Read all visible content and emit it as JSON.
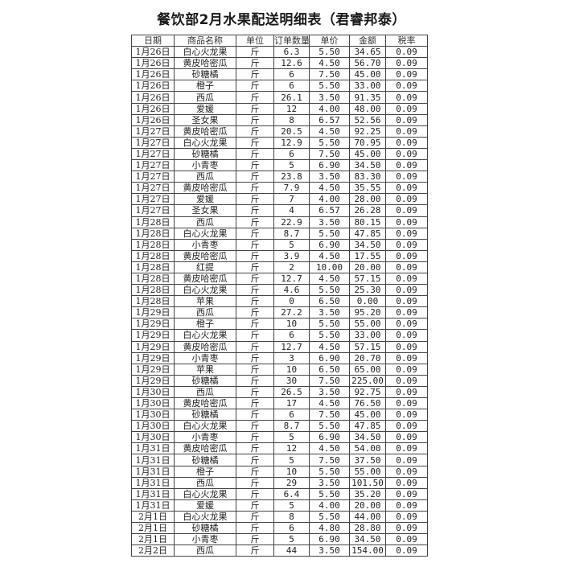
{
  "title": "餐饮部2月水果配送明细表（君睿邦泰）",
  "columns": [
    "日期",
    "商品名称",
    "单位",
    "订单数量",
    "单价",
    "金额",
    "税率"
  ],
  "rows": [
    [
      "1月26日",
      "白心火龙果",
      "斤",
      "6.3",
      "5.50",
      "34.65",
      "0.09"
    ],
    [
      "1月26日",
      "黄皮哈密瓜",
      "斤",
      "12.6",
      "4.50",
      "56.70",
      "0.09"
    ],
    [
      "1月26日",
      "砂糖橘",
      "斤",
      "6",
      "7.50",
      "45.00",
      "0.09"
    ],
    [
      "1月26日",
      "橙子",
      "斤",
      "6",
      "5.50",
      "33.00",
      "0.09"
    ],
    [
      "1月26日",
      "西瓜",
      "斤",
      "26.1",
      "3.50",
      "91.35",
      "0.09"
    ],
    [
      "1月26日",
      "爱媛",
      "斤",
      "12",
      "4.00",
      "48.00",
      "0.09"
    ],
    [
      "1月26日",
      "圣女果",
      "斤",
      "8",
      "6.57",
      "52.56",
      "0.09"
    ],
    [
      "1月27日",
      "黄皮哈密瓜",
      "斤",
      "20.5",
      "4.50",
      "92.25",
      "0.09"
    ],
    [
      "1月27日",
      "白心火龙果",
      "斤",
      "12.9",
      "5.50",
      "70.95",
      "0.09"
    ],
    [
      "1月27日",
      "砂糖橘",
      "斤",
      "6",
      "7.50",
      "45.00",
      "0.09"
    ],
    [
      "1月27日",
      "小青枣",
      "斤",
      "5",
      "6.90",
      "34.50",
      "0.09"
    ],
    [
      "1月27日",
      "西瓜",
      "斤",
      "23.8",
      "3.50",
      "83.30",
      "0.09"
    ],
    [
      "1月27日",
      "黄皮哈密瓜",
      "斤",
      "7.9",
      "4.50",
      "35.55",
      "0.09"
    ],
    [
      "1月27日",
      "爱媛",
      "斤",
      "7",
      "4.00",
      "28.00",
      "0.09"
    ],
    [
      "1月27日",
      "圣女果",
      "斤",
      "4",
      "6.57",
      "26.28",
      "0.09"
    ],
    [
      "1月28日",
      "西瓜",
      "斤",
      "22.9",
      "3.50",
      "80.15",
      "0.09"
    ],
    [
      "1月28日",
      "白心火龙果",
      "斤",
      "8.7",
      "5.50",
      "47.85",
      "0.09"
    ],
    [
      "1月28日",
      "小青枣",
      "斤",
      "5",
      "6.90",
      "34.50",
      "0.09"
    ],
    [
      "1月28日",
      "黄皮哈密瓜",
      "斤",
      "3.9",
      "4.50",
      "17.55",
      "0.09"
    ],
    [
      "1月28日",
      "红提",
      "斤",
      "2",
      "10.00",
      "20.00",
      "0.09"
    ],
    [
      "1月28日",
      "黄皮哈密瓜",
      "斤",
      "12.7",
      "4.50",
      "57.15",
      "0.09"
    ],
    [
      "1月28日",
      "白心火龙果",
      "斤",
      "4.6",
      "5.50",
      "25.30",
      "0.09"
    ],
    [
      "1月28日",
      "苹果",
      "斤",
      "0",
      "6.50",
      "0.00",
      "0.09"
    ],
    [
      "1月29日",
      "西瓜",
      "斤",
      "27.2",
      "3.50",
      "95.20",
      "0.09"
    ],
    [
      "1月29日",
      "橙子",
      "斤",
      "10",
      "5.50",
      "55.00",
      "0.09"
    ],
    [
      "1月29日",
      "白心火龙果",
      "斤",
      "6",
      "5.50",
      "33.00",
      "0.09"
    ],
    [
      "1月29日",
      "黄皮哈密瓜",
      "斤",
      "12.7",
      "4.50",
      "57.15",
      "0.09"
    ],
    [
      "1月29日",
      "小青枣",
      "斤",
      "3",
      "6.90",
      "20.70",
      "0.09"
    ],
    [
      "1月29日",
      "苹果",
      "斤",
      "10",
      "6.50",
      "65.00",
      "0.09"
    ],
    [
      "1月29日",
      "砂糖橘",
      "斤",
      "30",
      "7.50",
      "225.00",
      "0.09"
    ],
    [
      "1月30日",
      "西瓜",
      "斤",
      "26.5",
      "3.50",
      "92.75",
      "0.09"
    ],
    [
      "1月30日",
      "黄皮哈密瓜",
      "斤",
      "17",
      "4.50",
      "76.50",
      "0.09"
    ],
    [
      "1月30日",
      "砂糖橘",
      "斤",
      "6",
      "7.50",
      "45.00",
      "0.09"
    ],
    [
      "1月30日",
      "白心火龙果",
      "斤",
      "8.7",
      "5.50",
      "47.85",
      "0.09"
    ],
    [
      "1月30日",
      "小青枣",
      "斤",
      "5",
      "6.90",
      "34.50",
      "0.09"
    ],
    [
      "1月31日",
      "黄皮哈密瓜",
      "斤",
      "12",
      "4.50",
      "54.00",
      "0.09"
    ],
    [
      "1月31日",
      "砂糖橘",
      "斤",
      "5",
      "7.50",
      "37.50",
      "0.09"
    ],
    [
      "1月31日",
      "橙子",
      "斤",
      "10",
      "5.50",
      "55.00",
      "0.09"
    ],
    [
      "1月31日",
      "西瓜",
      "斤",
      "29",
      "3.50",
      "101.50",
      "0.09"
    ],
    [
      "1月31日",
      "白心火龙果",
      "斤",
      "6.4",
      "5.50",
      "35.20",
      "0.09"
    ],
    [
      "1月31日",
      "爱媛",
      "斤",
      "5",
      "4.00",
      "20.00",
      "0.09"
    ],
    [
      "2月1日",
      "白心火龙果",
      "斤",
      "8",
      "5.50",
      "44.00",
      "0.09"
    ],
    [
      "2月1日",
      "砂糖橘",
      "斤",
      "6",
      "4.80",
      "28.80",
      "0.09"
    ],
    [
      "2月1日",
      "小青枣",
      "斤",
      "5",
      "6.90",
      "34.50",
      "0.09"
    ],
    [
      "2月2日",
      "西瓜",
      "斤",
      "44",
      "3.50",
      "154.00",
      "0.09"
    ]
  ]
}
